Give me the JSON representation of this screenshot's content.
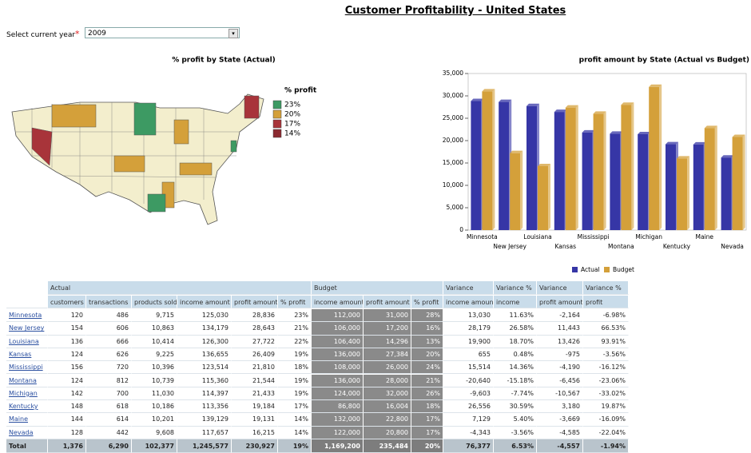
{
  "header": {
    "title": "Customer Profitability - United States"
  },
  "controls": {
    "label": "Select current year",
    "required": "*",
    "year": "2009"
  },
  "map": {
    "title": "% profit by State (Actual)",
    "legend_title": "% profit",
    "legend": [
      {
        "label": "23%",
        "color": "#3d9a63"
      },
      {
        "label": "20%",
        "color": "#d4a03a"
      },
      {
        "label": "17%",
        "color": "#a8343a"
      },
      {
        "label": "14%",
        "color": "#8b2a30"
      }
    ]
  },
  "chart_data": {
    "type": "bar",
    "title": "profit amount by State (Actual vs Budget)",
    "categories": [
      "Minnesota",
      "New Jersey",
      "Louisiana",
      "Kansas",
      "Mississippi",
      "Montana",
      "Michigan",
      "Kentucky",
      "Maine",
      "Nevada"
    ],
    "series": [
      {
        "name": "Actual",
        "color": "#3636a6",
        "values": [
          28836,
          28643,
          27722,
          26409,
          21810,
          21544,
          21433,
          19184,
          19131,
          16215
        ]
      },
      {
        "name": "Budget",
        "color": "#d4a03a",
        "values": [
          31000,
          17200,
          14296,
          27384,
          26000,
          28000,
          32000,
          16004,
          22800,
          20800
        ]
      }
    ],
    "ylim": [
      0,
      35000
    ],
    "yticks": [
      0,
      {
        "value": 5000,
        "label": "5,000"
      },
      {
        "value": 10000,
        "label": "10,000"
      },
      {
        "value": 15000,
        "label": "15,000"
      },
      {
        "value": 20000,
        "label": "20,000"
      },
      {
        "value": 25000,
        "label": "25,000"
      },
      {
        "value": 30000,
        "label": "30,000"
      },
      {
        "value": 35000,
        "label": "35,000"
      }
    ],
    "legend": "bottom"
  },
  "table": {
    "groups": [
      "Actual",
      "Budget",
      "Variance",
      "Variance %",
      "Variance",
      "Variance %"
    ],
    "columns": [
      "customers",
      "transactions",
      "products sold",
      "income amount",
      "profit amount",
      "% profit",
      "income amount",
      "profit amount",
      "% profit",
      "income amount",
      "income",
      "profit amount",
      "profit"
    ],
    "rows": [
      [
        "Minnesota",
        "120",
        "486",
        "9,715",
        "125,030",
        "28,836",
        "23%",
        "112,000",
        "31,000",
        "28%",
        "13,030",
        "11.63%",
        "-2,164",
        "-6.98%"
      ],
      [
        "New Jersey",
        "154",
        "606",
        "10,863",
        "134,179",
        "28,643",
        "21%",
        "106,000",
        "17,200",
        "16%",
        "28,179",
        "26.58%",
        "11,443",
        "66.53%"
      ],
      [
        "Louisiana",
        "136",
        "666",
        "10,414",
        "126,300",
        "27,722",
        "22%",
        "106,400",
        "14,296",
        "13%",
        "19,900",
        "18.70%",
        "13,426",
        "93.91%"
      ],
      [
        "Kansas",
        "124",
        "626",
        "9,225",
        "136,655",
        "26,409",
        "19%",
        "136,000",
        "27,384",
        "20%",
        "655",
        "0.48%",
        "-975",
        "-3.56%"
      ],
      [
        "Mississippi",
        "156",
        "720",
        "10,396",
        "123,514",
        "21,810",
        "18%",
        "108,000",
        "26,000",
        "24%",
        "15,514",
        "14.36%",
        "-4,190",
        "-16.12%"
      ],
      [
        "Montana",
        "124",
        "812",
        "10,739",
        "115,360",
        "21,544",
        "19%",
        "136,000",
        "28,000",
        "21%",
        "-20,640",
        "-15.18%",
        "-6,456",
        "-23.06%"
      ],
      [
        "Michigan",
        "142",
        "700",
        "11,030",
        "114,397",
        "21,433",
        "19%",
        "124,000",
        "32,000",
        "26%",
        "-9,603",
        "-7.74%",
        "-10,567",
        "-33.02%"
      ],
      [
        "Kentucky",
        "148",
        "618",
        "10,186",
        "113,356",
        "19,184",
        "17%",
        "86,800",
        "16,004",
        "18%",
        "26,556",
        "30.59%",
        "3,180",
        "19.87%"
      ],
      [
        "Maine",
        "144",
        "614",
        "10,201",
        "139,129",
        "19,131",
        "14%",
        "132,000",
        "22,800",
        "17%",
        "7,129",
        "5.40%",
        "-3,669",
        "-16.09%"
      ],
      [
        "Nevada",
        "128",
        "442",
        "9,608",
        "117,657",
        "16,215",
        "14%",
        "122,000",
        "20,800",
        "17%",
        "-4,343",
        "-3.56%",
        "-4,585",
        "-22.04%"
      ]
    ],
    "total": [
      "Total",
      "1,376",
      "6,290",
      "102,377",
      "1,245,577",
      "230,927",
      "19%",
      "1,169,200",
      "235,484",
      "20%",
      "76,377",
      "6.53%",
      "-4,557",
      "-1.94%"
    ]
  }
}
